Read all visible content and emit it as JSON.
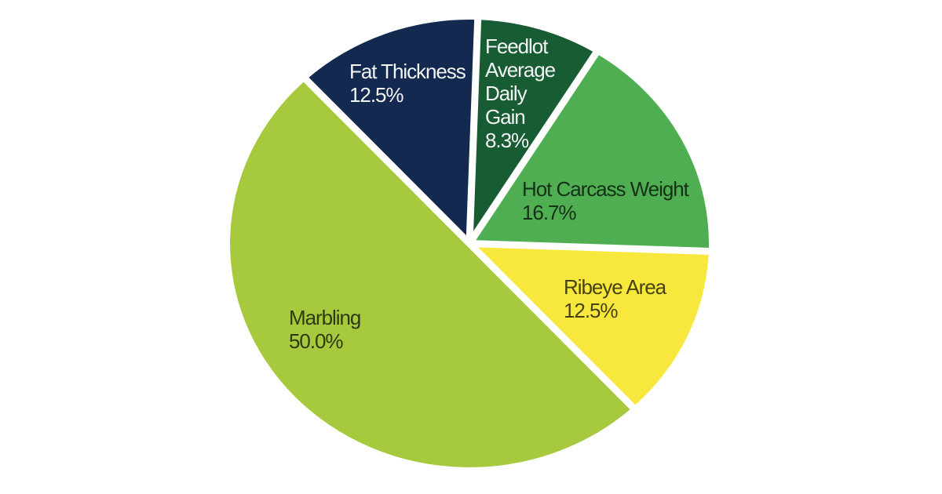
{
  "page": {
    "background": "#ffffff"
  },
  "chart_data": {
    "type": "pie",
    "title": "",
    "unit": "%",
    "start_angle_deg": 2,
    "separator_color": "#ffffff",
    "label_colors": {
      "light": "#F2F5F3",
      "dark": "rgba(0,0,0,0.72)"
    },
    "slices": [
      {
        "name": "Feedlot Average Daily Gain",
        "value": 8.3,
        "pct_label": "8.3%",
        "color": "#175C33",
        "label_style": "light",
        "label_lines": [
          "Feedlot",
          "Average",
          "Daily",
          "Gain",
          "8.3%"
        ]
      },
      {
        "name": "Hot Carcass Weight",
        "value": 16.7,
        "pct_label": "16.7%",
        "color": "#4FAE52",
        "label_style": "dark",
        "label_lines": [
          "Hot Carcass Weight",
          "16.7%"
        ]
      },
      {
        "name": "Ribeye Area",
        "value": 12.5,
        "pct_label": "12.5%",
        "color": "#F8E83D",
        "label_style": "dark",
        "label_lines": [
          "Ribeye Area",
          "12.5%"
        ]
      },
      {
        "name": "Marbling",
        "value": 50.0,
        "pct_label": "50.0%",
        "color": "#A6C93D",
        "label_style": "dark",
        "label_lines": [
          "Marbling",
          "50.0%"
        ]
      },
      {
        "name": "Fat Thickness",
        "value": 12.5,
        "pct_label": "12.5%",
        "color": "#13294F",
        "label_style": "light",
        "label_lines": [
          "Fat Thickness",
          "12.5%"
        ]
      }
    ]
  }
}
